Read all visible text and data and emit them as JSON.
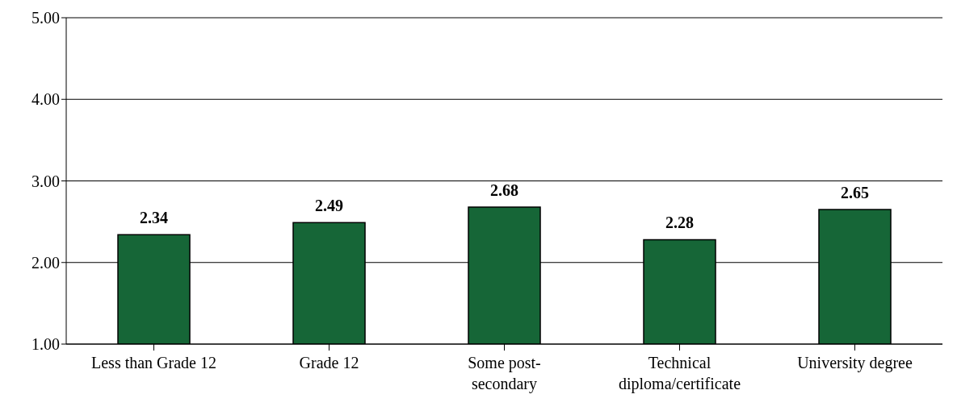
{
  "chart_data": {
    "type": "bar",
    "categories": [
      "Less than Grade 12",
      "Grade 12",
      "Some post-secondary",
      "Technical diploma/certificate",
      "University degree"
    ],
    "values": [
      2.34,
      2.49,
      2.68,
      2.28,
      2.65
    ],
    "color": "#166637",
    "ylim": [
      1,
      5
    ],
    "yticks": [
      {
        "value": 1,
        "label": "1.00"
      },
      {
        "value": 2,
        "label": "2.00"
      },
      {
        "value": 3,
        "label": "3.00"
      },
      {
        "value": 4,
        "label": "4.00"
      },
      {
        "value": 5,
        "label": "5.00"
      }
    ],
    "grid": "y",
    "data_labels": true
  }
}
